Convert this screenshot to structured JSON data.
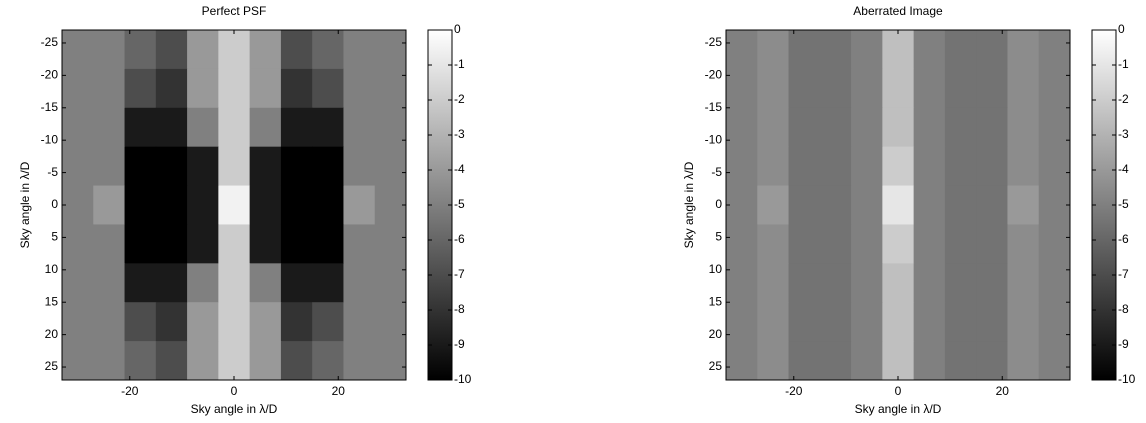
{
  "chart_data": [
    {
      "type": "heatmap",
      "title": "Perfect PSF",
      "xlabel": "Sky angle in λ/D",
      "ylabel": "Sky angle in λ/D",
      "colormap": "gray",
      "y_reversed": true,
      "x": [
        -30,
        -24,
        -18,
        -12,
        -6,
        0,
        6,
        12,
        18,
        24,
        30
      ],
      "y": [
        -24,
        -18,
        -12,
        -6,
        0,
        6,
        12,
        18,
        24
      ],
      "z": [
        [
          -5,
          -5,
          -6,
          -7,
          -4,
          -2,
          -4,
          -7,
          -6,
          -5,
          -5
        ],
        [
          -5,
          -5,
          -7,
          -8,
          -4,
          -2,
          -4,
          -8,
          -7,
          -5,
          -5
        ],
        [
          -5,
          -5,
          -9,
          -9,
          -5,
          -2,
          -5,
          -9,
          -9,
          -5,
          -5
        ],
        [
          -5,
          -5,
          -10,
          -10,
          -9,
          -2,
          -9,
          -10,
          -10,
          -5,
          -5
        ],
        [
          -5,
          -4,
          -10,
          -10,
          -9,
          -0.5,
          -9,
          -10,
          -10,
          -4,
          -5
        ],
        [
          -5,
          -5,
          -10,
          -10,
          -9,
          -2,
          -9,
          -10,
          -10,
          -5,
          -5
        ],
        [
          -5,
          -5,
          -9,
          -9,
          -5,
          -2,
          -5,
          -9,
          -9,
          -5,
          -5
        ],
        [
          -5,
          -5,
          -7,
          -8,
          -4,
          -2,
          -4,
          -8,
          -7,
          -5,
          -5
        ],
        [
          -5,
          -5,
          -6,
          -7,
          -4,
          -2,
          -4,
          -7,
          -6,
          -5,
          -5
        ]
      ],
      "xlim": [
        -33,
        33
      ],
      "ylim": [
        -27,
        27
      ],
      "xticks": [
        -20,
        0,
        20
      ],
      "yticks": [
        -25,
        -20,
        -15,
        -10,
        -5,
        0,
        5,
        10,
        15,
        20,
        25
      ],
      "clim": [
        -10,
        0
      ],
      "cticks": [
        0,
        -1,
        -2,
        -3,
        -4,
        -5,
        -6,
        -7,
        -8,
        -9,
        -10
      ]
    },
    {
      "type": "heatmap",
      "title": "Aberrated Image",
      "xlabel": "Sky angle in λ/D",
      "ylabel": "Sky angle in λ/D",
      "colormap": "gray",
      "y_reversed": true,
      "x": [
        -30,
        -24,
        -18,
        -12,
        -6,
        0,
        6,
        12,
        18,
        24,
        30
      ],
      "y": [
        -24,
        -18,
        -12,
        -6,
        0,
        6,
        12,
        18,
        24
      ],
      "z": [
        [
          -5,
          -4.5,
          -5.5,
          -5.5,
          -5,
          -2.5,
          -5,
          -5.5,
          -5.5,
          -4.5,
          -5
        ],
        [
          -5,
          -4.5,
          -5.5,
          -5.5,
          -5,
          -2.5,
          -5,
          -5.5,
          -5.5,
          -4.5,
          -5
        ],
        [
          -5,
          -4.5,
          -5.5,
          -5.5,
          -5,
          -2.5,
          -5,
          -5.5,
          -5.5,
          -4.5,
          -5
        ],
        [
          -5,
          -4.5,
          -5.5,
          -5.5,
          -5,
          -2,
          -5,
          -5.5,
          -5.5,
          -4.5,
          -5
        ],
        [
          -5,
          -4,
          -5.5,
          -5.5,
          -5,
          -1,
          -5,
          -5.5,
          -5.5,
          -4,
          -5
        ],
        [
          -5,
          -4.5,
          -5.5,
          -5.5,
          -5,
          -2,
          -5,
          -5.5,
          -5.5,
          -4.5,
          -5
        ],
        [
          -5,
          -4.5,
          -5.5,
          -5.5,
          -5,
          -2.5,
          -5,
          -5.5,
          -5.5,
          -4.5,
          -5
        ],
        [
          -5,
          -4.5,
          -5.5,
          -5.5,
          -5,
          -2.5,
          -5,
          -5.5,
          -5.5,
          -4.5,
          -5
        ],
        [
          -5,
          -4.5,
          -5.5,
          -5.5,
          -5,
          -2.5,
          -5,
          -5.5,
          -5.5,
          -4.5,
          -5
        ]
      ],
      "xlim": [
        -33,
        33
      ],
      "ylim": [
        -27,
        27
      ],
      "xticks": [
        -20,
        0,
        20
      ],
      "yticks": [
        -25,
        -20,
        -15,
        -10,
        -5,
        0,
        5,
        10,
        15,
        20,
        25
      ],
      "clim": [
        -10,
        0
      ],
      "cticks": [
        0,
        -1,
        -2,
        -3,
        -4,
        -5,
        -6,
        -7,
        -8,
        -9,
        -10
      ]
    }
  ]
}
